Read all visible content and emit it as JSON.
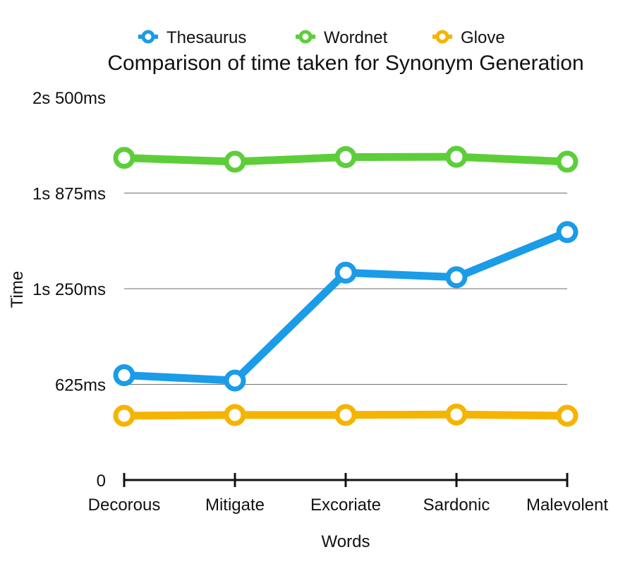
{
  "chart_data": {
    "type": "line",
    "title": "Comparison of time taken for Synonym Generation",
    "xlabel": "Words",
    "ylabel": "Time",
    "categories": [
      "Decorous",
      "Mitigate",
      "Excoriate",
      "Sardonic",
      "Malevolent"
    ],
    "y_ticks": [
      {
        "value": 0,
        "label": "0"
      },
      {
        "value": 625,
        "label": "625ms"
      },
      {
        "value": 1250,
        "label": "1s 250ms"
      },
      {
        "value": 1875,
        "label": "1s 875ms"
      },
      {
        "value": 2500,
        "label": "2s 500ms"
      }
    ],
    "ylim": [
      0,
      2500
    ],
    "grid": true,
    "legend_position": "top",
    "series": [
      {
        "name": "Thesaurus",
        "color": "#1a9ce8",
        "values": [
          685,
          650,
          1355,
          1325,
          1620
        ]
      },
      {
        "name": "Wordnet",
        "color": "#5dce3a",
        "values": [
          2105,
          2080,
          2110,
          2112,
          2080
        ]
      },
      {
        "name": "Glove",
        "color": "#f5b400",
        "values": [
          420,
          425,
          425,
          428,
          420
        ]
      }
    ]
  }
}
